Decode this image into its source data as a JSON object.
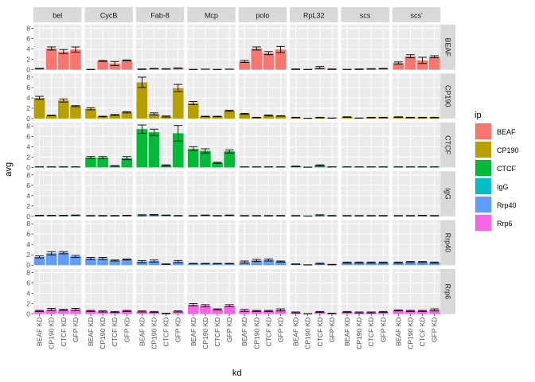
{
  "chart_data": {
    "type": "bar",
    "faceted": true,
    "col_facets": [
      "bel",
      "CycB",
      "Fab-8",
      "Mcp",
      "polo",
      "RpL32",
      "scs",
      "scs'"
    ],
    "row_facets": [
      "BEAF",
      "CP190",
      "CTCF",
      "IgG",
      "Rrp40",
      "Rrp6"
    ],
    "categories": [
      "BEAF KD",
      "CP190 KD",
      "CTCF KD",
      "GFP KD"
    ],
    "xlabel": "kd",
    "ylabel": "avg",
    "ylim": [
      0,
      8.7
    ],
    "yticks": [
      "0",
      "2",
      "4",
      "6",
      "8"
    ],
    "grid": true,
    "legend": {
      "title": "ip",
      "position": "right",
      "items": [
        {
          "label": "BEAF",
          "color": "#F8766D"
        },
        {
          "label": "CP190",
          "color": "#B79F00"
        },
        {
          "label": "CTCF",
          "color": "#00BA38"
        },
        {
          "label": "IgG",
          "color": "#00BFC4"
        },
        {
          "label": "Rrp40",
          "color": "#619CFF"
        },
        {
          "label": "Rrp6",
          "color": "#F564E3"
        }
      ]
    },
    "values": {
      "BEAF": {
        "bel": [
          0.2,
          4.1,
          3.5,
          3.9
        ],
        "CycB": [
          0.05,
          1.7,
          1.2,
          1.8
        ],
        "Fab-8": [
          0.1,
          0.2,
          0.15,
          0.3
        ],
        "Mcp": [
          0.05,
          0.1,
          0.05,
          0.1
        ],
        "polo": [
          1.6,
          4.1,
          3.2,
          3.9
        ],
        "RpL32": [
          0.1,
          0.05,
          0.4,
          0.1
        ],
        "scs": [
          0.05,
          0.1,
          0.15,
          0.2
        ],
        "scs'": [
          1.3,
          2.6,
          1.8,
          2.5
        ]
      },
      "CP190": {
        "bel": [
          4.0,
          0.6,
          3.5,
          2.4
        ],
        "CycB": [
          1.9,
          0.4,
          0.7,
          1.2
        ],
        "Fab-8": [
          7.0,
          0.9,
          0.4,
          5.9
        ],
        "Mcp": [
          3.0,
          0.4,
          0.4,
          1.5
        ],
        "polo": [
          0.9,
          0.2,
          0.6,
          0.5
        ],
        "RpL32": [
          0.2,
          0.05,
          0.2,
          0.1
        ],
        "scs": [
          0.3,
          0.1,
          0.2,
          0.2
        ],
        "scs'": [
          0.3,
          0.2,
          0.2,
          0.2
        ]
      },
      "CTCF": {
        "bel": [
          0.1,
          0.1,
          0.1,
          0.1
        ],
        "CycB": [
          1.9,
          1.9,
          0.3,
          1.8
        ],
        "Fab-8": [
          7.4,
          6.8,
          0.4,
          6.6
        ],
        "Mcp": [
          3.6,
          3.2,
          0.9,
          3.1
        ],
        "polo": [
          0.1,
          0.1,
          0.1,
          0.1
        ],
        "RpL32": [
          0.2,
          0.05,
          0.4,
          0.1
        ],
        "scs": [
          0.1,
          0.1,
          0.1,
          0.1
        ],
        "scs'": [
          0.1,
          0.1,
          0.1,
          0.1
        ]
      },
      "IgG": {
        "bel": [
          0.15,
          0.15,
          0.15,
          0.2
        ],
        "CycB": [
          0.1,
          0.1,
          0.1,
          0.15
        ],
        "Fab-8": [
          0.2,
          0.25,
          0.2,
          0.1
        ],
        "Mcp": [
          0.1,
          0.2,
          0.1,
          0.2
        ],
        "polo": [
          0.1,
          0.1,
          0.1,
          0.1
        ],
        "RpL32": [
          0.1,
          0.05,
          0.2,
          0.1
        ],
        "scs": [
          0.1,
          0.1,
          0.1,
          0.1
        ],
        "scs'": [
          0.1,
          0.1,
          0.15,
          0.1
        ]
      },
      "Rrp40": {
        "bel": [
          1.6,
          2.3,
          2.4,
          1.7
        ],
        "CycB": [
          1.3,
          1.3,
          0.9,
          1.1
        ],
        "Fab-8": [
          0.7,
          0.8,
          0.2,
          0.7
        ],
        "Mcp": [
          0.3,
          0.3,
          0.3,
          0.3
        ],
        "polo": [
          0.6,
          0.9,
          1.0,
          0.7
        ],
        "RpL32": [
          0.2,
          0.05,
          0.3,
          0.1
        ],
        "scs": [
          0.5,
          0.5,
          0.5,
          0.5
        ],
        "scs'": [
          0.5,
          0.6,
          0.6,
          0.5
        ]
      },
      "Rrp6": {
        "bel": [
          0.6,
          0.9,
          0.8,
          0.9
        ],
        "CycB": [
          0.6,
          0.5,
          0.4,
          0.6
        ],
        "Fab-8": [
          0.5,
          0.4,
          0.1,
          0.5
        ],
        "Mcp": [
          1.8,
          1.6,
          0.9,
          1.6
        ],
        "polo": [
          0.7,
          0.6,
          0.6,
          0.8
        ],
        "RpL32": [
          0.3,
          0.05,
          0.4,
          0.1
        ],
        "scs": [
          0.4,
          0.3,
          0.3,
          0.4
        ],
        "scs'": [
          0.7,
          0.6,
          0.6,
          0.8
        ]
      }
    },
    "errors": {
      "BEAF": {
        "bel": [
          0.05,
          0.3,
          0.4,
          0.5
        ],
        "CycB": [
          0.02,
          0.1,
          0.4,
          0.1
        ],
        "Fab-8": [
          0.05,
          0.05,
          0.05,
          0.05
        ],
        "Mcp": [
          0.02,
          0.02,
          0.02,
          0.02
        ],
        "polo": [
          0.2,
          0.3,
          0.3,
          0.6
        ],
        "RpL32": [
          0.05,
          0.02,
          0.2,
          0.05
        ],
        "scs": [
          0.02,
          0.05,
          0.05,
          0.05
        ],
        "scs'": [
          0.2,
          0.3,
          0.6,
          0.2
        ]
      },
      "CP190": {
        "bel": [
          0.3,
          0.05,
          0.3,
          0.1
        ],
        "CycB": [
          0.2,
          0.05,
          0.1,
          0.1
        ],
        "Fab-8": [
          1.0,
          0.2,
          0.1,
          0.7
        ],
        "Mcp": [
          0.3,
          0.05,
          0.05,
          0.1
        ],
        "polo": [
          0.1,
          0.05,
          0.1,
          0.05
        ],
        "RpL32": [
          0.05,
          0.02,
          0.05,
          0.02
        ],
        "scs": [
          0.05,
          0.02,
          0.05,
          0.05
        ],
        "scs'": [
          0.05,
          0.05,
          0.05,
          0.05
        ]
      },
      "CTCF": {
        "bel": [
          0.02,
          0.02,
          0.02,
          0.02
        ],
        "CycB": [
          0.2,
          0.2,
          0.05,
          0.3
        ],
        "Fab-8": [
          0.8,
          0.6,
          0.1,
          1.5
        ],
        "Mcp": [
          0.4,
          0.4,
          0.1,
          0.3
        ],
        "polo": [
          0.02,
          0.02,
          0.02,
          0.02
        ],
        "RpL32": [
          0.05,
          0.02,
          0.1,
          0.02
        ],
        "scs": [
          0.02,
          0.02,
          0.02,
          0.02
        ],
        "scs'": [
          0.02,
          0.02,
          0.02,
          0.02
        ]
      },
      "IgG": {
        "bel": [
          0.05,
          0.05,
          0.05,
          0.05
        ],
        "CycB": [
          0.05,
          0.05,
          0.05,
          0.05
        ],
        "Fab-8": [
          0.1,
          0.1,
          0.05,
          0.05
        ],
        "Mcp": [
          0.05,
          0.05,
          0.05,
          0.05
        ],
        "polo": [
          0.05,
          0.05,
          0.05,
          0.05
        ],
        "RpL32": [
          0.05,
          0.02,
          0.1,
          0.05
        ],
        "scs": [
          0.05,
          0.05,
          0.05,
          0.05
        ],
        "scs'": [
          0.05,
          0.05,
          0.05,
          0.05
        ]
      },
      "Rrp40": {
        "bel": [
          0.2,
          0.3,
          0.2,
          0.2
        ],
        "CycB": [
          0.2,
          0.2,
          0.1,
          0.1
        ],
        "Fab-8": [
          0.2,
          0.2,
          0.05,
          0.2
        ],
        "Mcp": [
          0.05,
          0.05,
          0.05,
          0.05
        ],
        "polo": [
          0.2,
          0.2,
          0.2,
          0.1
        ],
        "RpL32": [
          0.05,
          0.02,
          0.1,
          0.05
        ],
        "scs": [
          0.1,
          0.1,
          0.1,
          0.1
        ],
        "scs'": [
          0.1,
          0.1,
          0.1,
          0.1
        ]
      },
      "Rrp6": {
        "bel": [
          0.1,
          0.2,
          0.1,
          0.2
        ],
        "CycB": [
          0.1,
          0.1,
          0.1,
          0.1
        ],
        "Fab-8": [
          0.1,
          0.1,
          0.05,
          0.1
        ],
        "Mcp": [
          0.2,
          0.2,
          0.1,
          0.2
        ],
        "polo": [
          0.2,
          0.1,
          0.1,
          0.2
        ],
        "RpL32": [
          0.1,
          0.02,
          0.1,
          0.05
        ],
        "scs": [
          0.1,
          0.1,
          0.1,
          0.1
        ],
        "scs'": [
          0.1,
          0.1,
          0.1,
          0.2
        ]
      }
    }
  }
}
